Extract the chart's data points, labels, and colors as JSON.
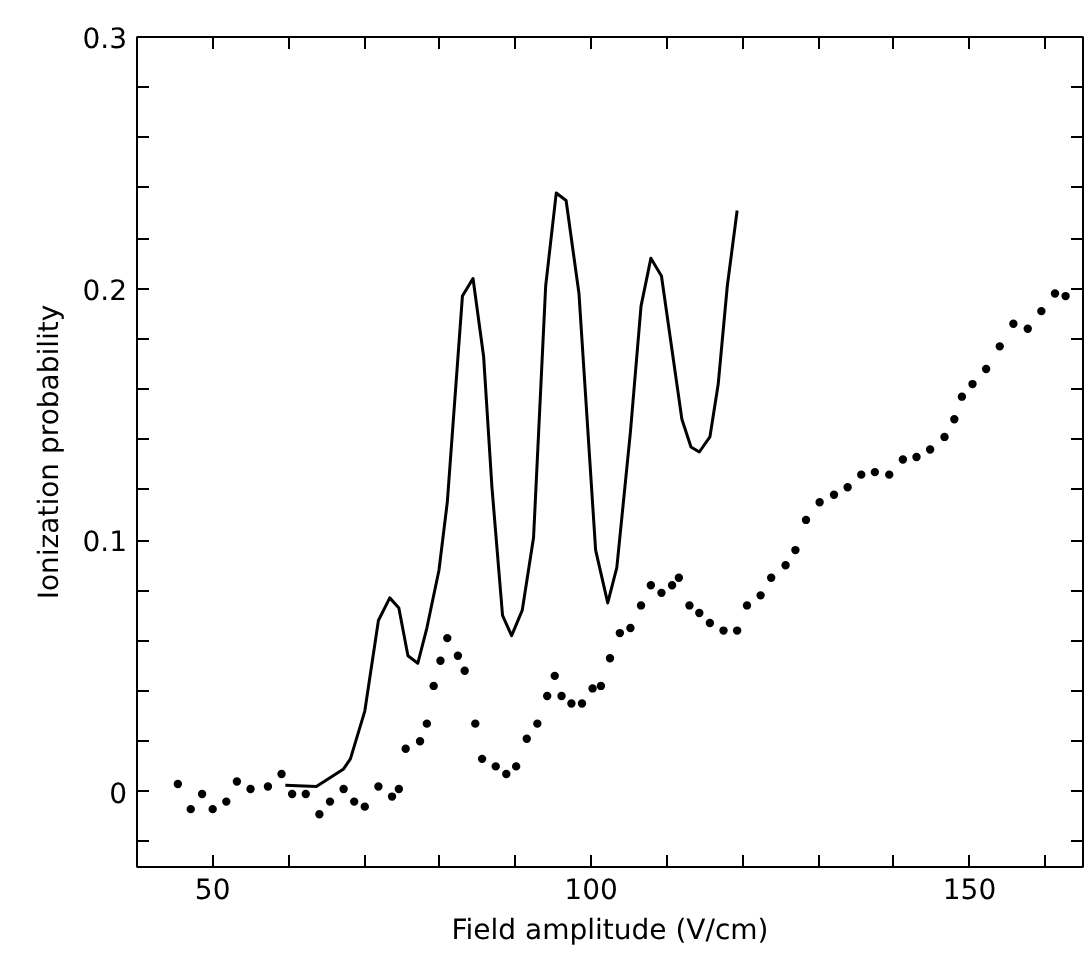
{
  "chart_data": {
    "type": "line",
    "xlabel": "Field amplitude (V/cm)",
    "ylabel": "Ionization probability",
    "xlim": [
      40,
      165
    ],
    "ylim": [
      -0.03,
      0.3
    ],
    "xticks": [
      50,
      {
        "value": 60,
        "label": null
      },
      {
        "value": 70,
        "label": null
      },
      {
        "value": 80,
        "label": null
      },
      {
        "value": 90,
        "label": null
      },
      100,
      {
        "value": 110,
        "label": null
      },
      {
        "value": 120,
        "label": null
      },
      {
        "value": 130,
        "label": null
      },
      {
        "value": 140,
        "label": null
      },
      150,
      {
        "value": 160,
        "label": null
      }
    ],
    "yticks": [
      {
        "value": -0.02,
        "label": null
      },
      0,
      {
        "value": 0.02,
        "label": null
      },
      {
        "value": 0.04,
        "label": null
      },
      {
        "value": 0.06,
        "label": null
      },
      {
        "value": 0.08,
        "label": null
      },
      0.1,
      {
        "value": 0.12,
        "label": null
      },
      {
        "value": 0.14,
        "label": null
      },
      {
        "value": 0.16,
        "label": null
      },
      {
        "value": 0.18,
        "label": null
      },
      0.2,
      {
        "value": 0.22,
        "label": null
      },
      {
        "value": 0.24,
        "label": null
      },
      {
        "value": 0.26,
        "label": null
      },
      {
        "value": 0.28,
        "label": null
      },
      0.3
    ],
    "grid": false,
    "series": [
      {
        "color": "#000000",
        "line_style": "solid",
        "x": [
          59.6,
          63.7,
          67.3,
          68.2,
          70.1,
          71.9,
          73.4,
          74.6,
          75.8,
          77.1,
          78.3,
          79.9,
          81.0,
          83.0,
          84.4,
          85.8,
          86.9,
          88.3,
          89.5,
          90.9,
          92.4,
          94.0,
          95.4,
          96.7,
          98.4,
          100.6,
          102.2,
          103.4,
          105.2,
          106.6,
          107.9,
          109.3,
          112.0,
          113.2,
          114.3,
          115.7,
          116.8,
          118.0,
          119.3
        ],
        "values": [
          0.0025,
          0.002,
          0.009,
          0.013,
          0.032,
          0.068,
          0.077,
          0.073,
          0.054,
          0.051,
          0.065,
          0.088,
          0.115,
          0.197,
          0.204,
          0.173,
          0.121,
          0.07,
          0.062,
          0.072,
          0.101,
          0.201,
          0.238,
          0.235,
          0.198,
          0.096,
          0.075,
          0.089,
          0.143,
          0.193,
          0.212,
          0.205,
          0.148,
          0.137,
          0.135,
          0.141,
          0.162,
          0.201,
          0.231
        ]
      },
      {
        "type": "scatter",
        "color": "#000000",
        "marker": "circle",
        "x": [
          45.4,
          47.1,
          48.6,
          50,
          51.8,
          53.2,
          55,
          57.3,
          59.1,
          60.5,
          62.3,
          64.1,
          65.5,
          67.3,
          68.7,
          70.1,
          71.9,
          73.7,
          74.6,
          75.5,
          77.4,
          78.3,
          79.2,
          80.1,
          81.0,
          82.4,
          83.3,
          84.7,
          85.6,
          87.4,
          88.8,
          90.1,
          91.5,
          92.9,
          94.2,
          95.2,
          96.1,
          97.4,
          98.8,
          100.2,
          101.3,
          102.5,
          103.8,
          105.2,
          106.6,
          107.9,
          109.3,
          110.7,
          111.6,
          113.0,
          114.3,
          115.7,
          117.5,
          119.3,
          120.6,
          122.4,
          123.8,
          125.7,
          127.0,
          128.4,
          130.2,
          132.1,
          133.9,
          135.7,
          137.5,
          139.4,
          141.2,
          143.0,
          144.8,
          146.7,
          148.0,
          149.0,
          150.4,
          152.2,
          154.0,
          155.8,
          157.7,
          159.5,
          161.3,
          162.7
        ],
        "values": [
          0.003,
          -0.007,
          -0.001,
          -0.007,
          -0.004,
          0.004,
          0.001,
          0.002,
          0.007,
          -0.001,
          -0.001,
          -0.009,
          -0.004,
          0.001,
          -0.004,
          -0.006,
          0.002,
          -0.002,
          0.001,
          0.017,
          0.02,
          0.027,
          0.042,
          0.052,
          0.061,
          0.054,
          0.048,
          0.027,
          0.013,
          0.01,
          0.007,
          0.01,
          0.021,
          0.027,
          0.038,
          0.046,
          0.038,
          0.035,
          0.035,
          0.041,
          0.042,
          0.053,
          0.063,
          0.065,
          0.074,
          0.082,
          0.079,
          0.082,
          0.085,
          0.074,
          0.071,
          0.067,
          0.064,
          0.064,
          0.074,
          0.078,
          0.085,
          0.09,
          0.096,
          0.108,
          0.115,
          0.118,
          0.121,
          0.126,
          0.127,
          0.126,
          0.132,
          0.133,
          0.136,
          0.141,
          0.148,
          0.157,
          0.162,
          0.168,
          0.177,
          0.186,
          0.184,
          0.191,
          0.198,
          0.197
        ]
      }
    ]
  }
}
